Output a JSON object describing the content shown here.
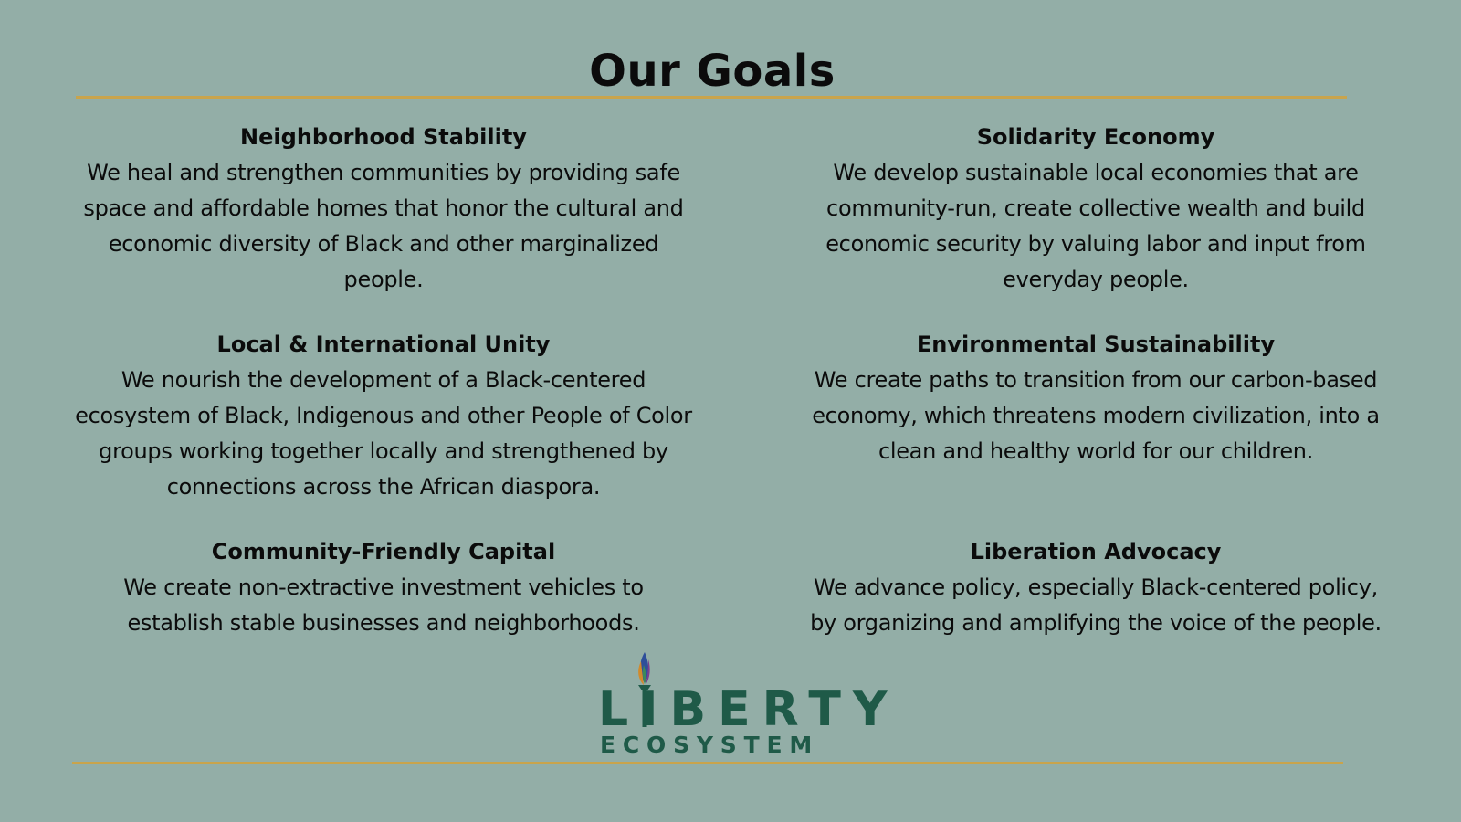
{
  "header": {
    "title": "Our Goals"
  },
  "goals": [
    {
      "title": "Neighborhood Stability",
      "description": "We heal and strengthen communities by providing safe space and affordable homes that honor the cultural and economic diversity of Black and other marginalized people."
    },
    {
      "title": "Solidarity Economy",
      "description": "We develop sustainable local economies that are community-run, create collective wealth and build economic security by valuing labor and input from everyday people."
    },
    {
      "title": "Local & International Unity",
      "description": "We nourish the development of a Black-centered ecosystem of Black, Indigenous and other People of Color groups working together locally and strengthened by connections across the African diaspora."
    },
    {
      "title": "Environmental Sustainability",
      "description": "We create paths to transition from our carbon-based economy, which threatens modern civilization, into a clean and healthy world for our children."
    },
    {
      "title": "Community-Friendly Capital",
      "description": "We create non-extractive investment vehicles to establish stable businesses and neighborhoods."
    },
    {
      "title": "Liberation Advocacy",
      "description": "We advance policy, especially Black-centered policy, by organizing and amplifying the voice of the people."
    }
  ],
  "logo": {
    "word": "LIBERTY",
    "sub": "ECOSYSTEM",
    "icon": "torch-icon"
  },
  "colors": {
    "background": "#93aea7",
    "rule": "#c9a44c",
    "logo": "#1f5a48",
    "text": "#0b0b0b"
  }
}
